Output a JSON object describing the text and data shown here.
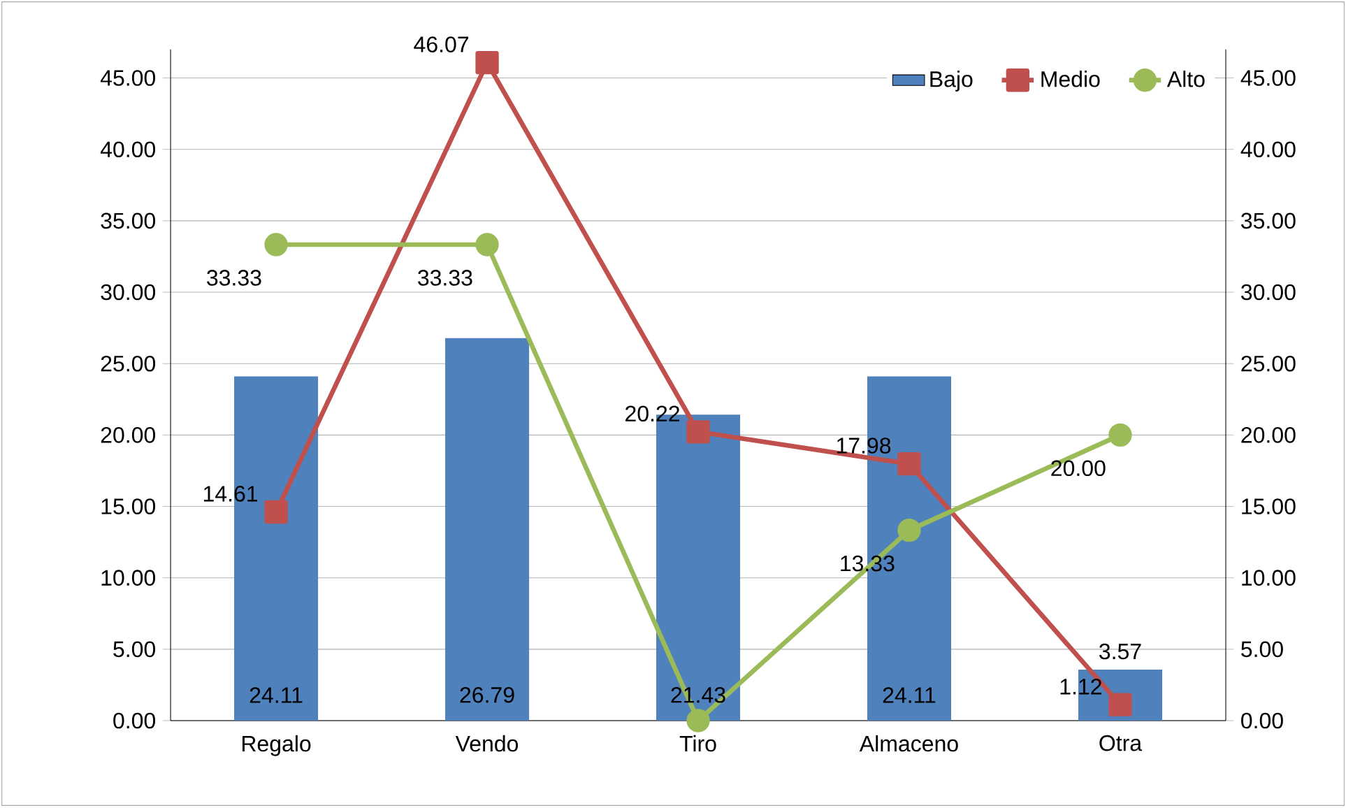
{
  "chart_data": {
    "type": "bar",
    "categories": [
      "Regalo",
      "Vendo",
      "Tiro",
      "Almaceno",
      "Otra"
    ],
    "series": [
      {
        "name": "Bajo",
        "color": "#4f81bd",
        "values": [
          24.11,
          26.79,
          21.43,
          24.11,
          3.57
        ],
        "value_labels": [
          "24.11",
          "26.79",
          "21.43",
          "24.11",
          "3.57"
        ]
      },
      {
        "name": "Medio",
        "type": "line",
        "color": "#c0504d",
        "marker": "square",
        "values": [
          14.61,
          46.07,
          20.22,
          17.98,
          1.12
        ],
        "value_labels": [
          "14.61",
          "46.07",
          "20.22",
          "17.98",
          "1.12"
        ]
      },
      {
        "name": "Alto",
        "type": "line",
        "color": "#9bbb59",
        "marker": "circle",
        "values": [
          33.33,
          33.33,
          0,
          13.33,
          20.0
        ],
        "value_labels": [
          "33.33",
          "33.33",
          null,
          "13.33",
          "20.00"
        ]
      }
    ],
    "ylim": [
      0,
      47
    ],
    "yticks": [
      {
        "value": 0,
        "label": "0.00"
      },
      {
        "value": 5,
        "label": "5.00"
      },
      {
        "value": 10,
        "label": "10.00"
      },
      {
        "value": 15,
        "label": "15.00"
      },
      {
        "value": 20,
        "label": "20.00"
      },
      {
        "value": 25,
        "label": "25.00"
      },
      {
        "value": 30,
        "label": "30.00"
      },
      {
        "value": 35,
        "label": "35.00"
      },
      {
        "value": 40,
        "label": "40.00"
      },
      {
        "value": 45,
        "label": "45.00"
      }
    ],
    "y2lim": [
      0,
      47
    ],
    "y2ticks": [
      {
        "value": 0,
        "label": "0.00"
      },
      {
        "value": 5,
        "label": "5.00"
      },
      {
        "value": 10,
        "label": "10.00"
      },
      {
        "value": 15,
        "label": "15.00"
      },
      {
        "value": 20,
        "label": "20.00"
      },
      {
        "value": 25,
        "label": "25.00"
      },
      {
        "value": 30,
        "label": "30.00"
      },
      {
        "value": 35,
        "label": "35.00"
      },
      {
        "value": 40,
        "label": "40.00"
      },
      {
        "value": 45,
        "label": "45.00"
      }
    ],
    "grid": "y",
    "legend": "top right"
  }
}
